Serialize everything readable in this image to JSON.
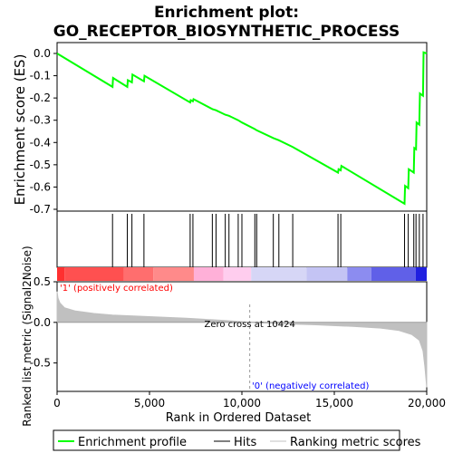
{
  "chart_data": {
    "type": "line",
    "title_line1": "Enrichment plot:",
    "title_line2": "GO_RECEPTOR_BIOSYNTHETIC_PROCESS",
    "es_panel": {
      "ylabel": "Enrichment score (ES)",
      "ylim": [
        -0.7,
        0.02
      ],
      "yticks": [
        0.0,
        -0.1,
        -0.2,
        -0.3,
        -0.4,
        -0.5,
        -0.6,
        -0.7
      ],
      "ytick_labels": [
        "0.0",
        "-0.1",
        "-0.2",
        "-0.3",
        "-0.4",
        "-0.5",
        "-0.6",
        "-0.7"
      ],
      "line_color": "#00ff00",
      "points": [
        [
          0,
          0.0
        ],
        [
          3000,
          -0.15
        ],
        [
          3030,
          -0.11
        ],
        [
          3800,
          -0.15
        ],
        [
          3830,
          -0.12
        ],
        [
          4050,
          -0.13
        ],
        [
          4080,
          -0.095
        ],
        [
          4700,
          -0.125
        ],
        [
          4730,
          -0.1
        ],
        [
          7200,
          -0.22
        ],
        [
          7230,
          -0.21
        ],
        [
          7350,
          -0.215
        ],
        [
          7380,
          -0.205
        ],
        [
          8400,
          -0.25
        ],
        [
          8600,
          -0.255
        ],
        [
          9100,
          -0.275
        ],
        [
          9300,
          -0.28
        ],
        [
          9800,
          -0.3
        ],
        [
          10000,
          -0.31
        ],
        [
          10700,
          -0.34
        ],
        [
          10800,
          -0.345
        ],
        [
          11700,
          -0.38
        ],
        [
          12000,
          -0.39
        ],
        [
          12750,
          -0.42
        ],
        [
          15200,
          -0.535
        ],
        [
          15230,
          -0.52
        ],
        [
          15350,
          -0.525
        ],
        [
          15380,
          -0.505
        ],
        [
          18800,
          -0.675
        ],
        [
          18830,
          -0.595
        ],
        [
          19000,
          -0.605
        ],
        [
          19030,
          -0.52
        ],
        [
          19300,
          -0.535
        ],
        [
          19330,
          -0.425
        ],
        [
          19420,
          -0.43
        ],
        [
          19450,
          -0.31
        ],
        [
          19600,
          -0.32
        ],
        [
          19630,
          -0.18
        ],
        [
          19800,
          -0.19
        ],
        [
          19830,
          0.005
        ],
        [
          20000,
          0.0
        ]
      ]
    },
    "hits": [
      3000,
      3800,
      4050,
      4700,
      7200,
      7350,
      8400,
      8600,
      9100,
      9300,
      9800,
      10000,
      10700,
      10800,
      11700,
      12000,
      12750,
      15200,
      15350,
      18800,
      19000,
      19300,
      19420,
      19600,
      19800
    ],
    "ranked_panel": {
      "ylabel": "Ranked list metric (Signal2Noise)",
      "ylim": [
        -0.85,
        0.5
      ],
      "yticks": [
        0.5,
        0.0,
        -0.5
      ],
      "ytick_labels": [
        "0.5",
        "0.0",
        "-0.5"
      ],
      "fill_color": "#c0c0c0",
      "points": [
        [
          0,
          0.38
        ],
        [
          50,
          0.3
        ],
        [
          150,
          0.24
        ],
        [
          400,
          0.18
        ],
        [
          1000,
          0.14
        ],
        [
          2000,
          0.11
        ],
        [
          3000,
          0.09
        ],
        [
          5000,
          0.07
        ],
        [
          7000,
          0.05
        ],
        [
          9000,
          0.025
        ],
        [
          10424,
          0.0
        ],
        [
          12000,
          -0.015
        ],
        [
          14000,
          -0.03
        ],
        [
          16000,
          -0.05
        ],
        [
          17500,
          -0.07
        ],
        [
          18500,
          -0.1
        ],
        [
          19200,
          -0.15
        ],
        [
          19600,
          -0.22
        ],
        [
          19800,
          -0.35
        ],
        [
          19900,
          -0.55
        ],
        [
          20000,
          -0.8
        ]
      ],
      "zero_cross_label": "Zero cross at 10424",
      "zero_cross_x": 10424,
      "pos_label": "'1' (positively correlated)",
      "neg_label": "'0' (negatively correlated)",
      "pos_color": "#ff0000",
      "neg_color": "#0000ff"
    },
    "xlabel": "Rank in Ordered Dataset",
    "xlim": [
      0,
      20000
    ],
    "xticks": [
      0,
      5000,
      10000,
      15000,
      20000
    ],
    "xtick_labels": [
      "0",
      "5,000",
      "10,000",
      "15,000",
      "20,000"
    ],
    "legend": {
      "placement": "bottom",
      "entries": [
        "Enrichment profile",
        "Hits",
        "Ranking metric scores"
      ]
    },
    "colorbar_segments": [
      {
        "from": 0,
        "to": 400,
        "color": "#ff3030"
      },
      {
        "from": 400,
        "to": 3600,
        "color": "#ff5050"
      },
      {
        "from": 3600,
        "to": 5200,
        "color": "#ff6e6e"
      },
      {
        "from": 5200,
        "to": 7400,
        "color": "#ff8a8a"
      },
      {
        "from": 7400,
        "to": 9000,
        "color": "#ffb0d8"
      },
      {
        "from": 9000,
        "to": 10500,
        "color": "#ffcdee"
      },
      {
        "from": 10500,
        "to": 13500,
        "color": "#d6d6f6"
      },
      {
        "from": 13500,
        "to": 15700,
        "color": "#c4c4f4"
      },
      {
        "from": 15700,
        "to": 17000,
        "color": "#8c8cf0"
      },
      {
        "from": 17000,
        "to": 19400,
        "color": "#6060e8"
      },
      {
        "from": 19400,
        "to": 20000,
        "color": "#2020e0"
      }
    ]
  }
}
